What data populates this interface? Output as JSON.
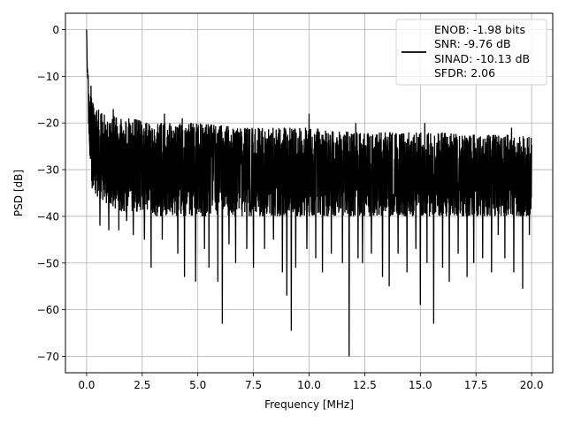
{
  "chart_data": {
    "type": "line",
    "title": "",
    "xlabel": "Frequency [MHz]",
    "ylabel": "PSD [dB]",
    "xlim": [
      -0.95,
      20.95
    ],
    "ylim": [
      -73.5,
      3.5
    ],
    "xticks": [
      0.0,
      2.5,
      5.0,
      7.5,
      10.0,
      12.5,
      15.0,
      17.5,
      20.0
    ],
    "xtick_labels": [
      "0.0",
      "2.5",
      "5.0",
      "7.5",
      "10.0",
      "12.5",
      "15.0",
      "17.5",
      "20.0"
    ],
    "yticks": [
      0,
      -10,
      -20,
      -30,
      -40,
      -50,
      -60,
      -70
    ],
    "ytick_labels": [
      "0",
      "−10",
      "−20",
      "−30",
      "−40",
      "−50",
      "−60",
      "−70"
    ],
    "grid": true,
    "legend_position": "top-right",
    "legend_lines": [
      "ENOB: -1.98 bits",
      "SNR: -9.76 dB",
      "SINAD: -10.13 dB",
      "SFDR: 2.06"
    ],
    "line_color": "#000000",
    "series": [
      {
        "envelope": {
          "x": [
            0.0,
            0.05,
            0.1,
            0.15,
            0.2,
            0.3,
            0.5,
            0.8,
            1.0,
            1.5,
            2.0,
            2.5,
            3.0,
            4.0,
            5.0,
            6.0,
            7.0,
            8.0,
            9.0,
            10.0,
            11.0,
            12.0,
            13.0,
            14.0,
            15.0,
            16.0,
            17.0,
            18.0,
            19.0,
            20.0
          ],
          "upper": [
            0.0,
            -6,
            -10,
            -13,
            -14,
            -16,
            -17,
            -18,
            -18,
            -19,
            -19,
            -19.5,
            -20,
            -20,
            -20,
            -20.5,
            -21,
            -21,
            -21,
            -21,
            -21.5,
            -22,
            -22,
            -22,
            -22,
            -22,
            -22.5,
            -22.5,
            -22.5,
            -23
          ],
          "lower": [
            -3.0,
            -14,
            -22,
            -28,
            -32,
            -34,
            -36,
            -37,
            -38,
            -39,
            -39,
            -39,
            -40,
            -40,
            -40,
            -40,
            -40,
            -40,
            -40,
            -40,
            -40,
            -40,
            -40,
            -40,
            -40,
            -40,
            -40,
            -40,
            -40,
            -40
          ]
        },
        "dips": [
          {
            "x": 0.25,
            "y": -34
          },
          {
            "x": 0.6,
            "y": -42
          },
          {
            "x": 1.0,
            "y": -43
          },
          {
            "x": 1.2,
            "y": -41
          },
          {
            "x": 1.45,
            "y": -43
          },
          {
            "x": 1.8,
            "y": -41
          },
          {
            "x": 2.1,
            "y": -44
          },
          {
            "x": 2.6,
            "y": -45
          },
          {
            "x": 2.9,
            "y": -51
          },
          {
            "x": 3.4,
            "y": -45
          },
          {
            "x": 3.5,
            "y": -54
          },
          {
            "x": 4.1,
            "y": -48
          },
          {
            "x": 4.4,
            "y": -53
          },
          {
            "x": 4.9,
            "y": -54
          },
          {
            "x": 5.3,
            "y": -47
          },
          {
            "x": 5.5,
            "y": -51
          },
          {
            "x": 5.9,
            "y": -54
          },
          {
            "x": 6.1,
            "y": -63
          },
          {
            "x": 6.4,
            "y": -46
          },
          {
            "x": 6.7,
            "y": -50
          },
          {
            "x": 7.2,
            "y": -47
          },
          {
            "x": 7.5,
            "y": -51
          },
          {
            "x": 8.0,
            "y": -47
          },
          {
            "x": 8.4,
            "y": -45
          },
          {
            "x": 8.8,
            "y": -52
          },
          {
            "x": 9.0,
            "y": -57
          },
          {
            "x": 9.2,
            "y": -64.5
          },
          {
            "x": 9.4,
            "y": -51
          },
          {
            "x": 9.9,
            "y": -47
          },
          {
            "x": 10.3,
            "y": -49
          },
          {
            "x": 10.6,
            "y": -52
          },
          {
            "x": 11.0,
            "y": -48
          },
          {
            "x": 11.5,
            "y": -50
          },
          {
            "x": 11.8,
            "y": -70
          },
          {
            "x": 12.2,
            "y": -49
          },
          {
            "x": 12.4,
            "y": -50
          },
          {
            "x": 12.8,
            "y": -48
          },
          {
            "x": 13.3,
            "y": -53
          },
          {
            "x": 13.6,
            "y": -55
          },
          {
            "x": 14.0,
            "y": -48
          },
          {
            "x": 14.4,
            "y": -52
          },
          {
            "x": 14.8,
            "y": -47
          },
          {
            "x": 15.0,
            "y": -59
          },
          {
            "x": 15.3,
            "y": -50
          },
          {
            "x": 15.6,
            "y": -63
          },
          {
            "x": 16.0,
            "y": -51
          },
          {
            "x": 16.3,
            "y": -54
          },
          {
            "x": 16.7,
            "y": -48
          },
          {
            "x": 17.1,
            "y": -53
          },
          {
            "x": 17.4,
            "y": -50
          },
          {
            "x": 17.8,
            "y": -49
          },
          {
            "x": 18.2,
            "y": -52
          },
          {
            "x": 18.5,
            "y": -44
          },
          {
            "x": 18.8,
            "y": -49
          },
          {
            "x": 19.2,
            "y": -52
          },
          {
            "x": 19.6,
            "y": -55.5
          },
          {
            "x": 19.9,
            "y": -44
          }
        ],
        "peaks": [
          {
            "x": 0.0,
            "y": 0
          },
          {
            "x": 0.2,
            "y": -12
          },
          {
            "x": 1.2,
            "y": -17
          },
          {
            "x": 3.5,
            "y": -18
          },
          {
            "x": 4.3,
            "y": -19
          },
          {
            "x": 10.0,
            "y": -18
          },
          {
            "x": 12.1,
            "y": -20
          },
          {
            "x": 15.2,
            "y": -20
          },
          {
            "x": 19.1,
            "y": -21
          }
        ]
      }
    ]
  }
}
